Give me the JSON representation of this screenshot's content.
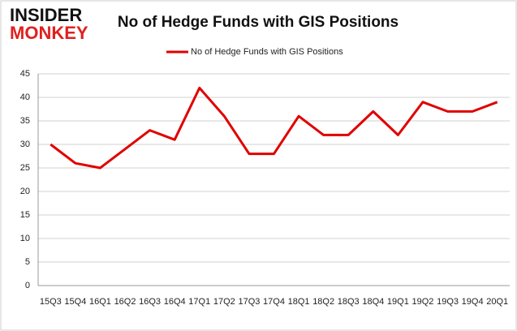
{
  "logo": {
    "line1": "INSIDER",
    "line2": "MONKEY"
  },
  "chart_data": {
    "type": "line",
    "title": "No of Hedge Funds with GIS Positions",
    "categories": [
      "15Q3",
      "15Q4",
      "16Q1",
      "16Q2",
      "16Q3",
      "16Q4",
      "17Q1",
      "17Q2",
      "17Q3",
      "17Q4",
      "18Q1",
      "18Q2",
      "18Q3",
      "18Q4",
      "19Q1",
      "19Q2",
      "19Q3",
      "19Q4",
      "20Q1"
    ],
    "series": [
      {
        "name": "No of Hedge Funds with GIS Positions",
        "color": "#e00000",
        "values": [
          30,
          26,
          25,
          29,
          33,
          31,
          42,
          36,
          28,
          28,
          36,
          32,
          32,
          37,
          32,
          39,
          37,
          37,
          39
        ]
      }
    ],
    "ylim": [
      0,
      45
    ],
    "yticks": [
      0,
      5,
      10,
      15,
      20,
      25,
      30,
      35,
      40,
      45
    ],
    "grid": true,
    "legend": "top"
  }
}
